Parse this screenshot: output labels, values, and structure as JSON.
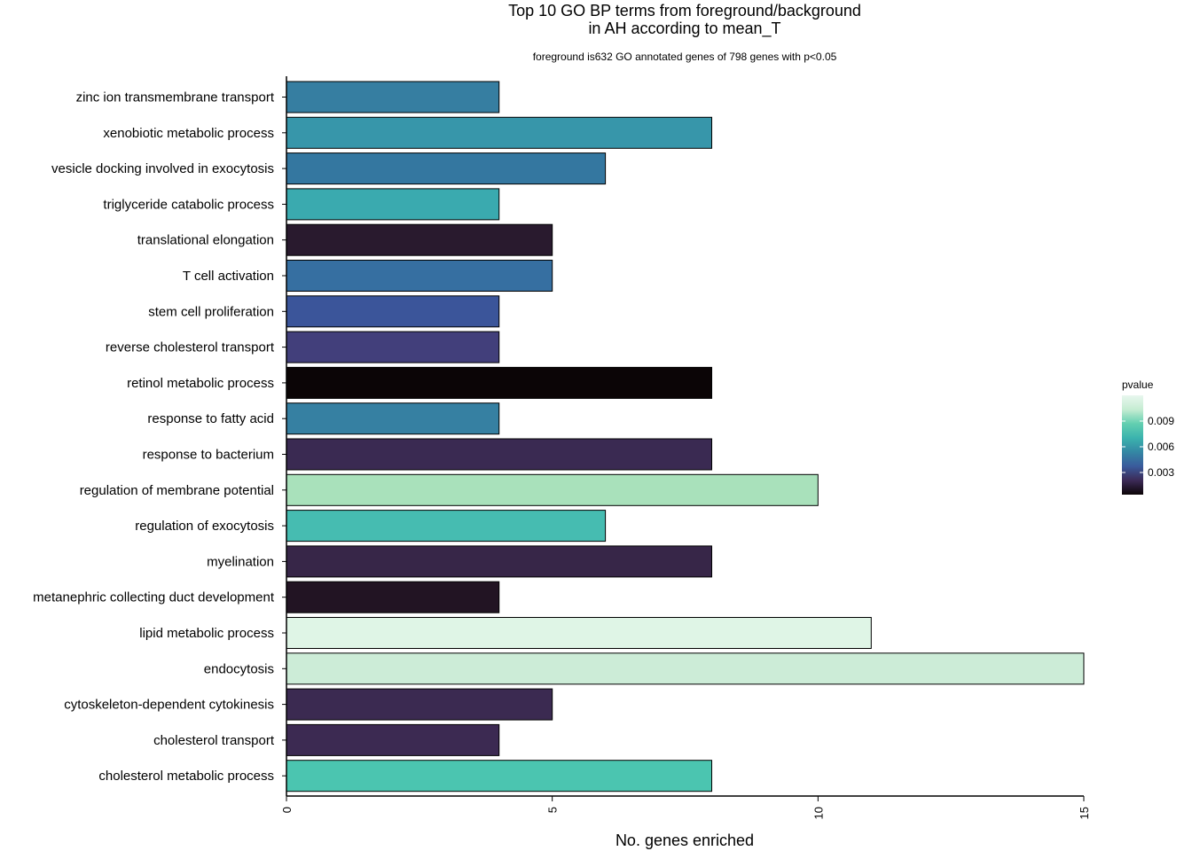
{
  "chart_data": {
    "type": "bar",
    "orientation": "horizontal",
    "title_line1": "Top 10 GO BP terms from foreground/background",
    "title_line2": "in AH according to mean_T",
    "subtitle": "foreground is632 GO annotated genes of 798 genes with p<0.05",
    "xlabel": "No. genes enriched",
    "ylabel": "",
    "xlim": [
      0,
      15
    ],
    "xticks": [
      0,
      5,
      10,
      15
    ],
    "grid": false,
    "categories": [
      "zinc ion transmembrane transport",
      "xenobiotic metabolic process",
      "vesicle docking involved in exocytosis",
      "triglyceride catabolic process",
      "translational elongation",
      "T cell activation",
      "stem cell proliferation",
      "reverse cholesterol transport",
      "retinol metabolic process",
      "response to fatty acid",
      "response to bacterium",
      "regulation of membrane potential",
      "regulation of exocytosis",
      "myelination",
      "metanephric collecting duct development",
      "lipid metabolic process",
      "endocytosis",
      "cytoskeleton-dependent cytokinesis",
      "cholesterol transport",
      "cholesterol metabolic process"
    ],
    "values": [
      4,
      8,
      6,
      4,
      5,
      5,
      4,
      4,
      8,
      4,
      8,
      10,
      6,
      8,
      4,
      11,
      15,
      5,
      4,
      8
    ],
    "colors": [
      "#367ea1",
      "#3796aa",
      "#3477a0",
      "#3aaaaf",
      "#291a2e",
      "#366fa1",
      "#3b559a",
      "#423f7b",
      "#0b0506",
      "#3680a2",
      "#3a2a52",
      "#a9e1bb",
      "#46bcb1",
      "#372648",
      "#221423",
      "#dff5e6",
      "#ccecd7",
      "#3b2a51",
      "#3c2a52",
      "#4bc5b0"
    ],
    "legend": {
      "title": "pvalue",
      "position": "right",
      "ticks": [
        "0.009",
        "0.006",
        "0.003"
      ],
      "colorscale": [
        "#0b0406",
        "#3c2a57",
        "#3a5b9c",
        "#3487a4",
        "#3bb3ae",
        "#62cfb0",
        "#c5ecd2",
        "#e8f7ee"
      ]
    }
  }
}
